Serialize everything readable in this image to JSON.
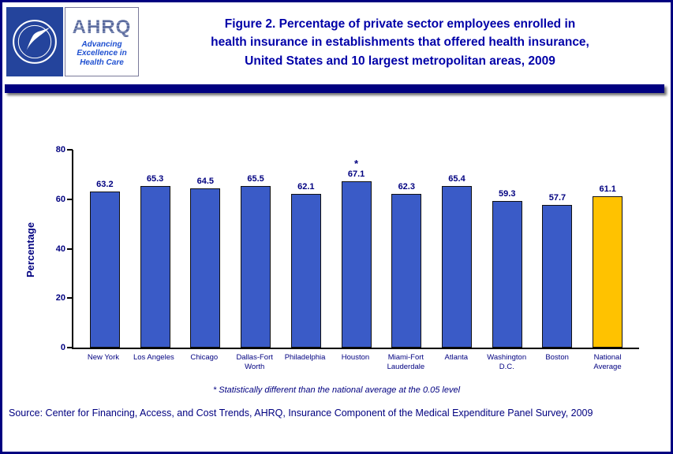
{
  "header": {
    "title_lines": [
      "Figure 2. Percentage of private sector employees enrolled in",
      "health insurance in establishments that offered health insurance,",
      "United States and 10 largest metropolitan areas, 2009"
    ],
    "ahrq_logo": {
      "acronym": "AHRQ",
      "tagline_lines": [
        "Advancing",
        "Excellence in",
        "Health Care"
      ]
    }
  },
  "chart_data": {
    "type": "bar",
    "title": "Figure 2. Percentage of private sector employees enrolled in health insurance in establishments that offered health insurance, United States and 10 largest metropolitan areas, 2009",
    "xlabel": "",
    "ylabel": "Percentage",
    "ylim": [
      0,
      80
    ],
    "yticks": [
      0,
      20,
      40,
      60,
      80
    ],
    "grid": false,
    "legend": "none",
    "categories": [
      "New York",
      "Los Angeles",
      "Chicago",
      "Dallas-Fort Worth",
      "Philadelphia",
      "Houston",
      "Miami-Fort Lauderdale",
      "Atlanta",
      "Washington D.C.",
      "Boston",
      "National Average"
    ],
    "values": [
      63.2,
      65.3,
      64.5,
      65.5,
      62.1,
      67.1,
      62.3,
      65.4,
      59.3,
      57.7,
      61.1
    ],
    "annotations": [
      "",
      "",
      "",
      "",
      "",
      "*",
      "",
      "",
      "",
      "",
      ""
    ],
    "bar_color": "#3A5BC7",
    "highlight_color": "#FFC200",
    "highlight_index": 10
  },
  "colors": {
    "accent_navy": "#000080",
    "title_blue": "#0000A8",
    "hhs_logo_blue": "#24449C"
  },
  "footnote": "* Statistically different than the national average at the 0.05 level",
  "source": "Source: Center for Financing, Access, and Cost Trends, AHRQ, Insurance Component of the Medical Expenditure Panel Survey, 2009"
}
